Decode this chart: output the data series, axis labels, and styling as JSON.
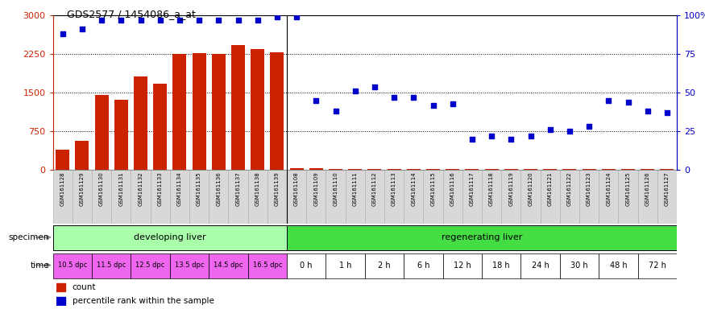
{
  "title": "GDS2577 / 1454086_a_at",
  "samples": [
    "GSM161128",
    "GSM161129",
    "GSM161130",
    "GSM161131",
    "GSM161132",
    "GSM161133",
    "GSM161134",
    "GSM161135",
    "GSM161136",
    "GSM161137",
    "GSM161138",
    "GSM161139",
    "GSM161108",
    "GSM161109",
    "GSM161110",
    "GSM161111",
    "GSM161112",
    "GSM161113",
    "GSM161114",
    "GSM161115",
    "GSM161116",
    "GSM161117",
    "GSM161118",
    "GSM161119",
    "GSM161120",
    "GSM161121",
    "GSM161122",
    "GSM161123",
    "GSM161124",
    "GSM161125",
    "GSM161126",
    "GSM161127"
  ],
  "counts": [
    390,
    560,
    1450,
    1360,
    1820,
    1680,
    2250,
    2270,
    2260,
    2420,
    2350,
    2290,
    30,
    28,
    26,
    26,
    26,
    26,
    26,
    26,
    26,
    26,
    26,
    26,
    26,
    26,
    26,
    26,
    26,
    26,
    26,
    26
  ],
  "percentile": [
    88,
    91,
    97,
    97,
    97,
    97,
    97,
    97,
    97,
    97,
    97,
    99,
    99,
    45,
    38,
    51,
    54,
    47,
    47,
    42,
    43,
    20,
    22,
    20,
    22,
    26,
    25,
    28,
    45,
    44,
    38,
    37
  ],
  "specimen_groups": [
    {
      "label": "developing liver",
      "start": 0,
      "end": 12,
      "color": "#aaffaa"
    },
    {
      "label": "regenerating liver",
      "start": 12,
      "end": 32,
      "color": "#44dd44"
    }
  ],
  "time_groups_dev": [
    {
      "label": "10.5 dpc",
      "start": 0,
      "end": 2
    },
    {
      "label": "11.5 dpc",
      "start": 2,
      "end": 4
    },
    {
      "label": "12.5 dpc",
      "start": 4,
      "end": 6
    },
    {
      "label": "13.5 dpc",
      "start": 6,
      "end": 8
    },
    {
      "label": "14.5 dpc",
      "start": 8,
      "end": 10
    },
    {
      "label": "16.5 dpc",
      "start": 10,
      "end": 12
    }
  ],
  "time_groups_reg": [
    {
      "label": "0 h",
      "start": 12,
      "end": 14
    },
    {
      "label": "1 h",
      "start": 14,
      "end": 16
    },
    {
      "label": "2 h",
      "start": 16,
      "end": 18
    },
    {
      "label": "6 h",
      "start": 18,
      "end": 20
    },
    {
      "label": "12 h",
      "start": 20,
      "end": 22
    },
    {
      "label": "18 h",
      "start": 22,
      "end": 24
    },
    {
      "label": "24 h",
      "start": 24,
      "end": 26
    },
    {
      "label": "30 h",
      "start": 26,
      "end": 28
    },
    {
      "label": "48 h",
      "start": 28,
      "end": 30
    },
    {
      "label": "72 h",
      "start": 30,
      "end": 32
    }
  ],
  "ylim_left": [
    0,
    3000
  ],
  "ylim_right": [
    0,
    100
  ],
  "yticks_left": [
    0,
    750,
    1500,
    2250,
    3000
  ],
  "yticks_right": [
    0,
    25,
    50,
    75,
    100
  ],
  "bar_color": "#cc2200",
  "dot_color": "#0000cc",
  "bg_color": "#ffffff",
  "xtick_bg": "#d8d8d8",
  "pink_color": "#ee66ee",
  "white_color": "#ffffff"
}
